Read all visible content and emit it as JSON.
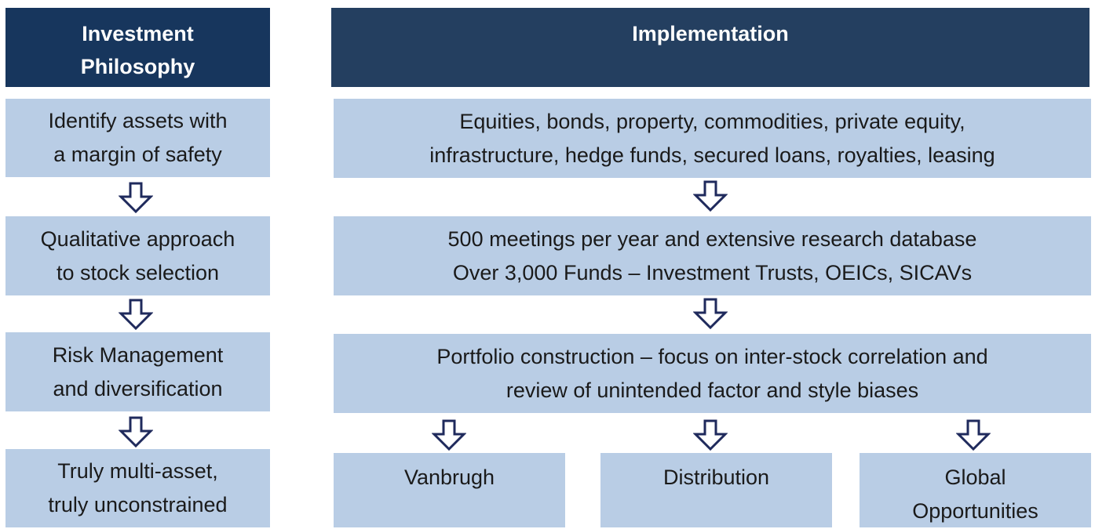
{
  "left_header": [
    "Investment",
    "Philosophy"
  ],
  "right_header": [
    "Implementation"
  ],
  "left_boxes": [
    [
      "Identify assets with",
      "a margin of safety"
    ],
    [
      "Qualitative approach",
      "to stock selection"
    ],
    [
      "Risk Management",
      "and diversification"
    ],
    [
      "Truly multi-asset,",
      "truly unconstrained"
    ]
  ],
  "right_boxes": [
    [
      "Equities, bonds, property, commodities, private equity,",
      "infrastructure, hedge funds, secured loans, royalties, leasing"
    ],
    [
      "500 meetings per year and extensive research database",
      "Over 3,000 Funds – Investment Trusts, OEICs, SICAVs"
    ],
    [
      "Portfolio construction – focus on inter-stock correlation and",
      "review of unintended factor and style biases"
    ]
  ],
  "funds": [
    [
      "Vanbrugh"
    ],
    [
      "Distribution"
    ],
    [
      "Global",
      "Opportunities"
    ]
  ]
}
